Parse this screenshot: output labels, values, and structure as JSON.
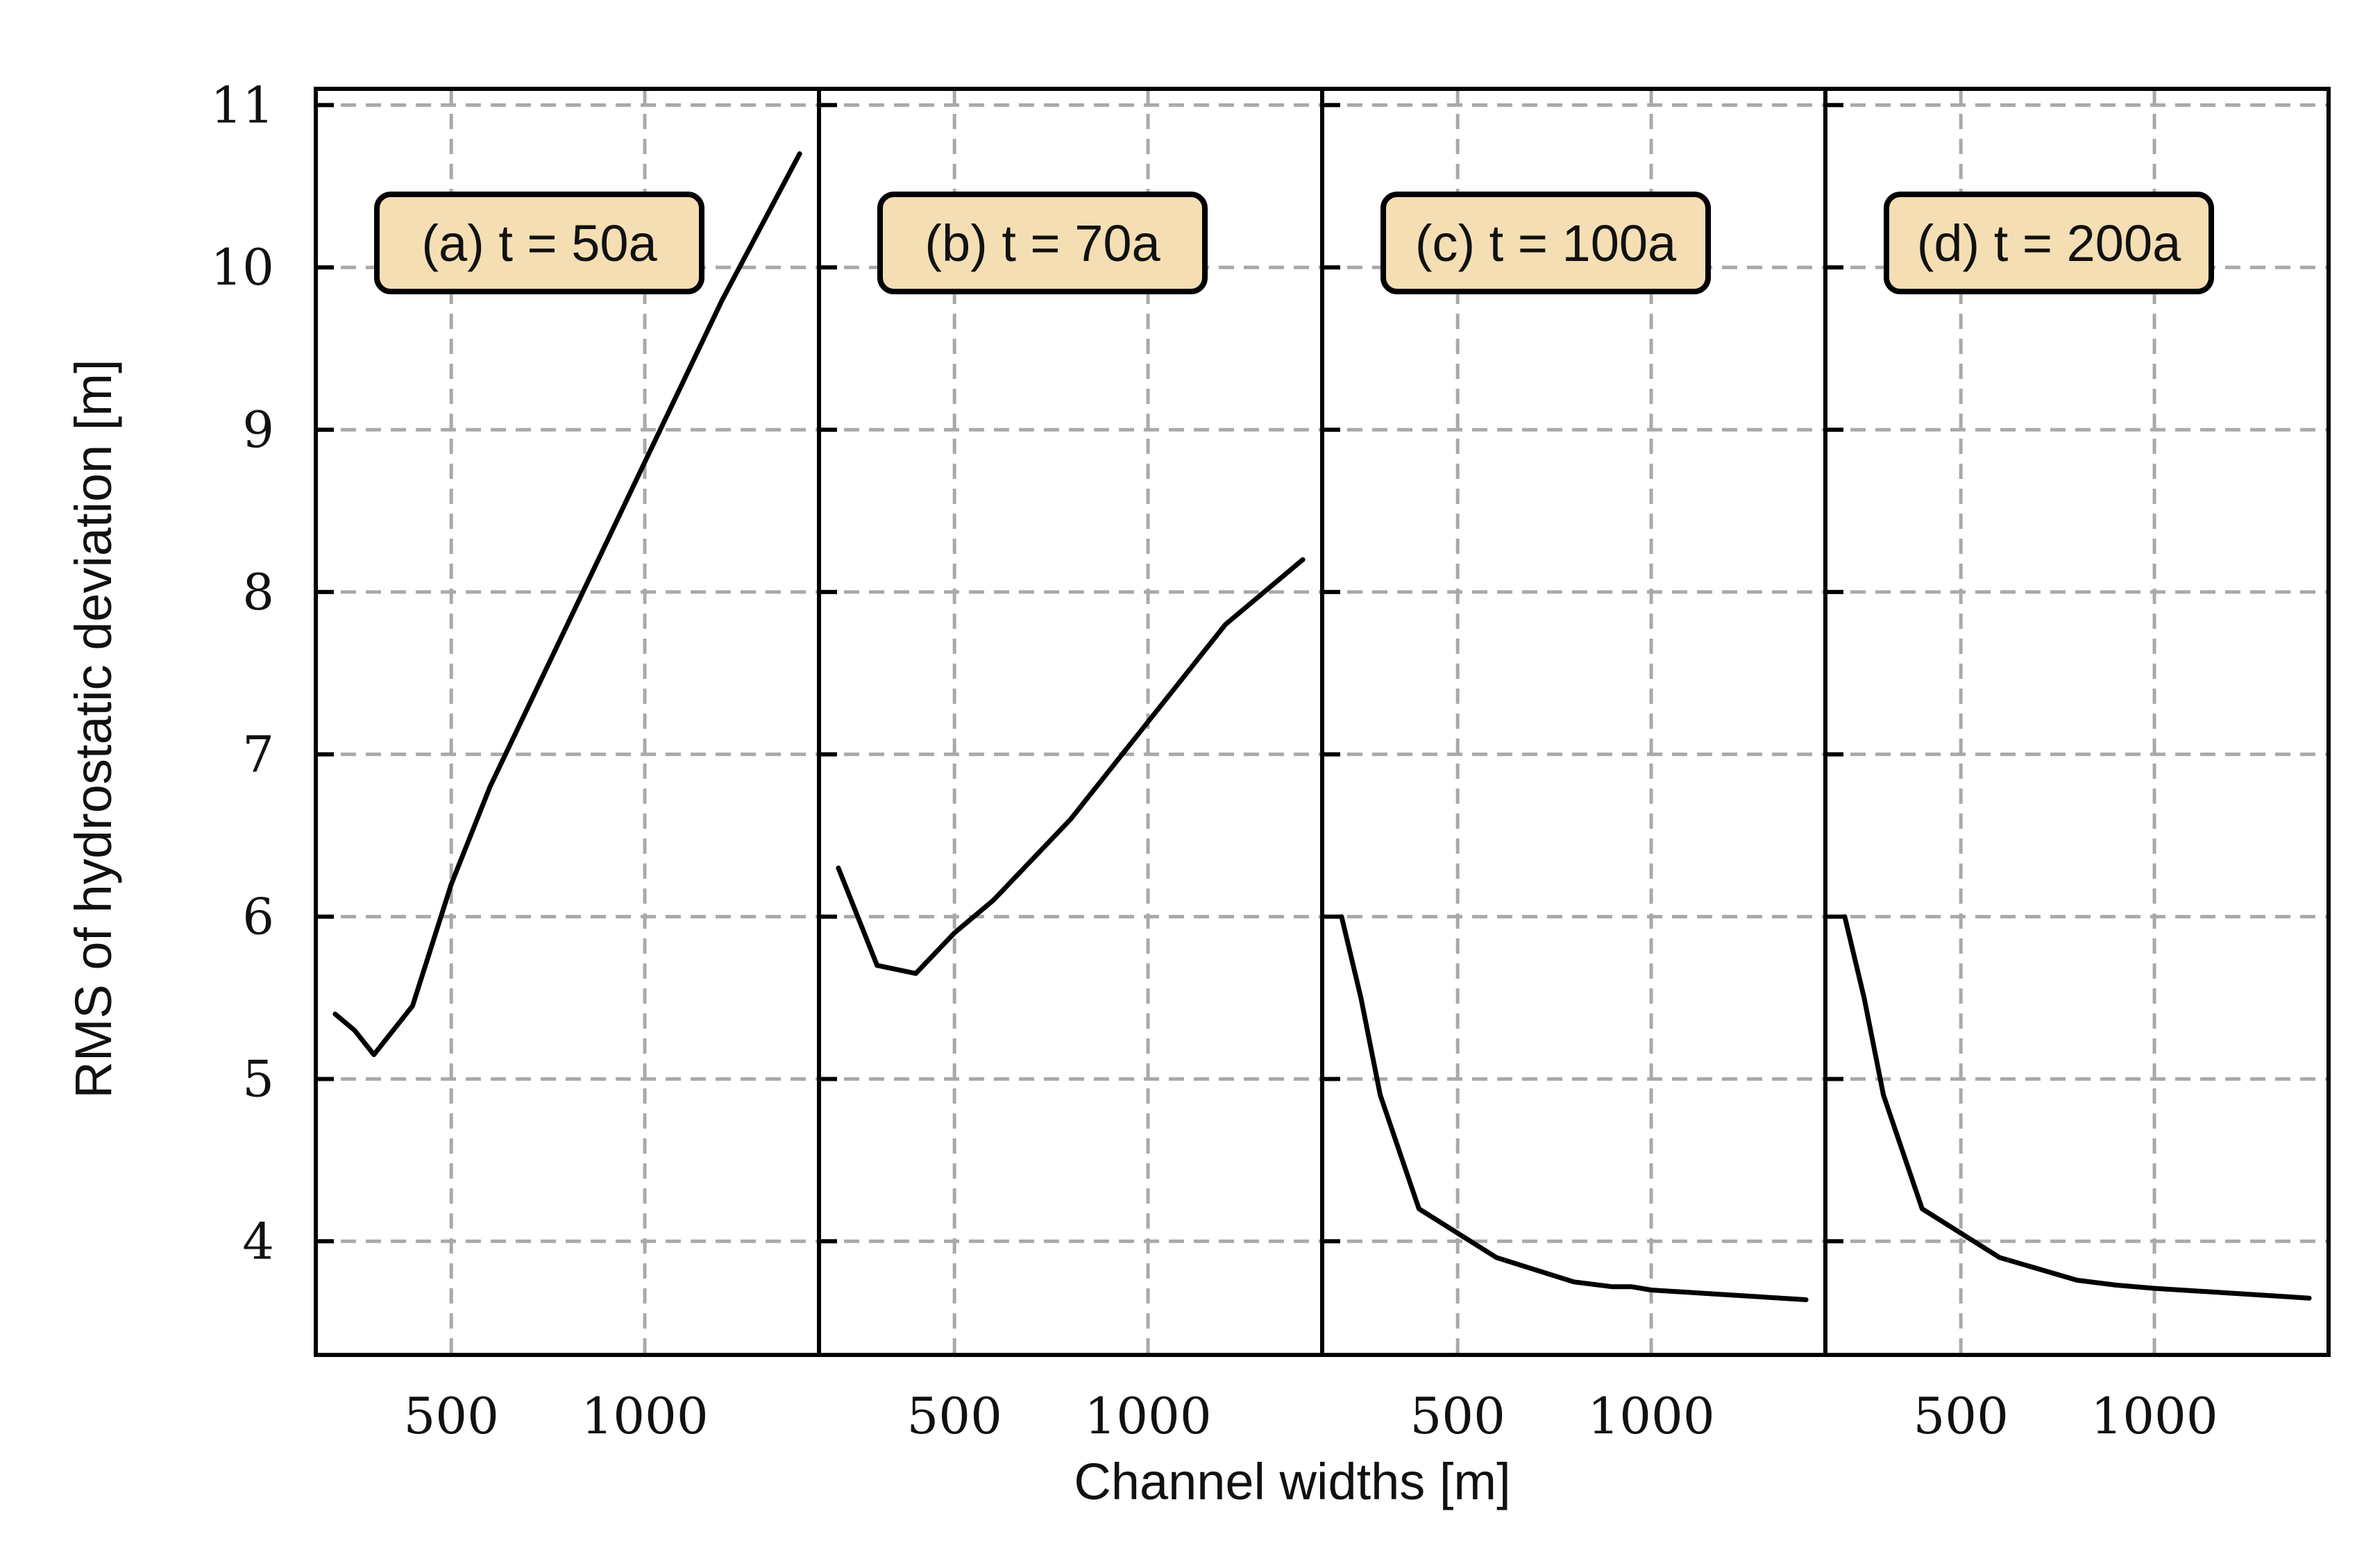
{
  "chart_data": {
    "type": "line",
    "ylabel": "RMS of hydrostatic deviation [m]",
    "xlabel": "Channel widths [m]",
    "grid": true,
    "xlim": [
      150,
      1450
    ],
    "ylim": [
      3.3,
      11.1
    ],
    "xticks": [
      500,
      1000
    ],
    "xtick_labels": [
      "500",
      "1000"
    ],
    "yticks": [
      4,
      5,
      6,
      7,
      8,
      9,
      10,
      11
    ],
    "ytick_labels": [
      "4",
      "5",
      "6",
      "7",
      "8",
      "9",
      "10",
      "11"
    ],
    "panels": [
      {
        "label": "(a) t = 50a",
        "x": [
          200,
          250,
          300,
          400,
          500,
          600,
          800,
          1000,
          1200,
          1400
        ],
        "y": [
          5.4,
          5.3,
          5.15,
          5.45,
          6.2,
          6.8,
          7.8,
          8.8,
          9.8,
          10.7
        ]
      },
      {
        "label": "(b) t = 70a",
        "x": [
          200,
          250,
          300,
          400,
          500,
          600,
          800,
          1000,
          1200,
          1400
        ],
        "y": [
          6.3,
          6.0,
          5.7,
          5.65,
          5.9,
          6.1,
          6.6,
          7.2,
          7.8,
          8.2
        ]
      },
      {
        "label": "(c) t = 100a",
        "x": [
          200,
          250,
          300,
          400,
          500,
          600,
          800,
          900,
          950,
          1000,
          1200,
          1400
        ],
        "y": [
          6.0,
          5.5,
          4.9,
          4.2,
          4.05,
          3.9,
          3.75,
          3.72,
          3.72,
          3.7,
          3.67,
          3.64
        ]
      },
      {
        "label": "(d) t = 200a",
        "x": [
          200,
          250,
          300,
          400,
          500,
          600,
          800,
          900,
          1000,
          1200,
          1400
        ],
        "y": [
          6.0,
          5.5,
          4.9,
          4.2,
          4.05,
          3.9,
          3.76,
          3.73,
          3.71,
          3.68,
          3.65
        ]
      }
    ]
  }
}
